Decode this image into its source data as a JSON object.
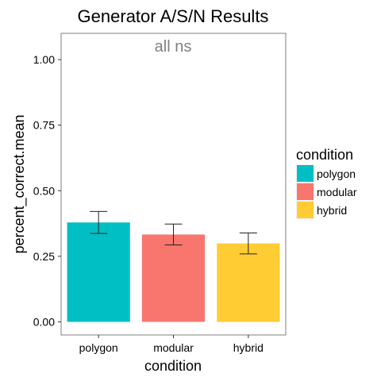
{
  "chart_data": {
    "type": "bar",
    "title": "Generator A/S/N Results",
    "xlabel": "condition",
    "ylabel": "percent_correct.mean",
    "categories": [
      "polygon",
      "modular",
      "hybrid"
    ],
    "values": [
      0.379,
      0.333,
      0.299
    ],
    "error_low": [
      0.337,
      0.293,
      0.259
    ],
    "error_high": [
      0.421,
      0.373,
      0.339
    ],
    "colors": [
      "#00BFC4",
      "#F8766D",
      "#FFCC33"
    ],
    "ylim": [
      -0.05,
      1.1
    ],
    "yticks": [
      0.0,
      0.25,
      0.5,
      0.75,
      1.0
    ],
    "ytick_labels": [
      "0.00",
      "0.25",
      "0.50",
      "0.75",
      "1.00"
    ],
    "annotation": "all ns",
    "grid": false,
    "legend": {
      "title": "condition",
      "position": "right",
      "items": [
        "polygon",
        "modular",
        "hybrid"
      ]
    }
  }
}
